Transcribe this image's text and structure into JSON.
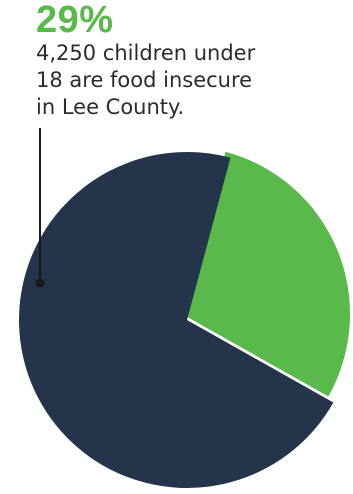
{
  "headline": "29%",
  "caption_lines": [
    "4,250 children under",
    "18 are food insecure",
    "in Lee County."
  ],
  "colors": {
    "highlight": "#59b94a",
    "base": "#24344a",
    "text": "#2c2c2c",
    "leader": "#1a1a1a"
  },
  "chart_data": {
    "type": "pie",
    "title": "",
    "slices": [
      {
        "label": "4,250 children under 18 are food insecure in Lee County.",
        "value": 29,
        "color": "#59b94a",
        "exploded": true
      },
      {
        "label": "",
        "value": 71,
        "color": "#24344a",
        "exploded": false
      }
    ],
    "legend": "none"
  }
}
